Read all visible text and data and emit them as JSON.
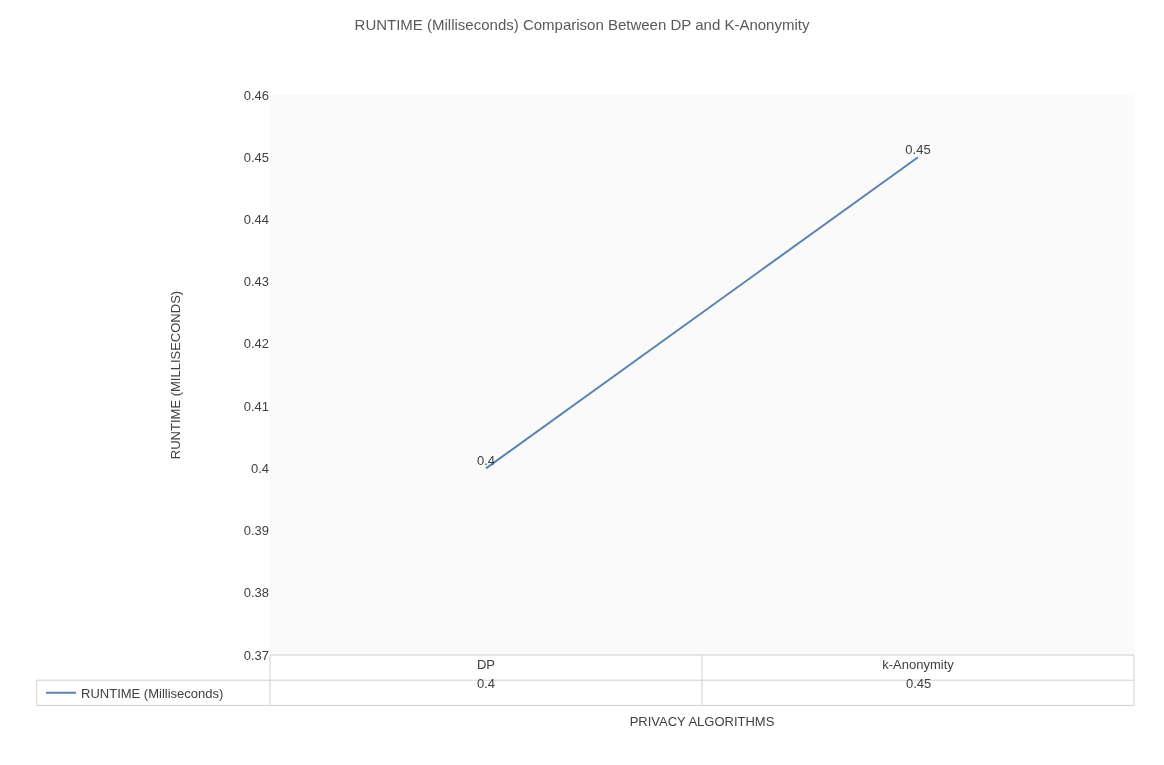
{
  "chart_data": {
    "type": "line",
    "title": "RUNTIME (Milliseconds) Comparison Between DP and K-Anonymity",
    "xlabel": "PRIVACY ALGORITHMS",
    "ylabel": "RUNTIME (MILLISECONDS)",
    "categories": [
      "DP",
      "k-Anonymity"
    ],
    "series": [
      {
        "name": "RUNTIME (Milliseconds)",
        "color": "#5b82b0",
        "values": [
          0.4,
          0.45
        ],
        "value_labels": [
          "0.4",
          "0.45"
        ]
      }
    ],
    "ylim": [
      0.37,
      0.46
    ],
    "yticks": [
      0.37,
      0.38,
      0.39,
      0.4,
      0.41,
      0.42,
      0.43,
      0.44,
      0.45,
      0.46
    ],
    "data_labels": true,
    "legend": "bottom"
  }
}
